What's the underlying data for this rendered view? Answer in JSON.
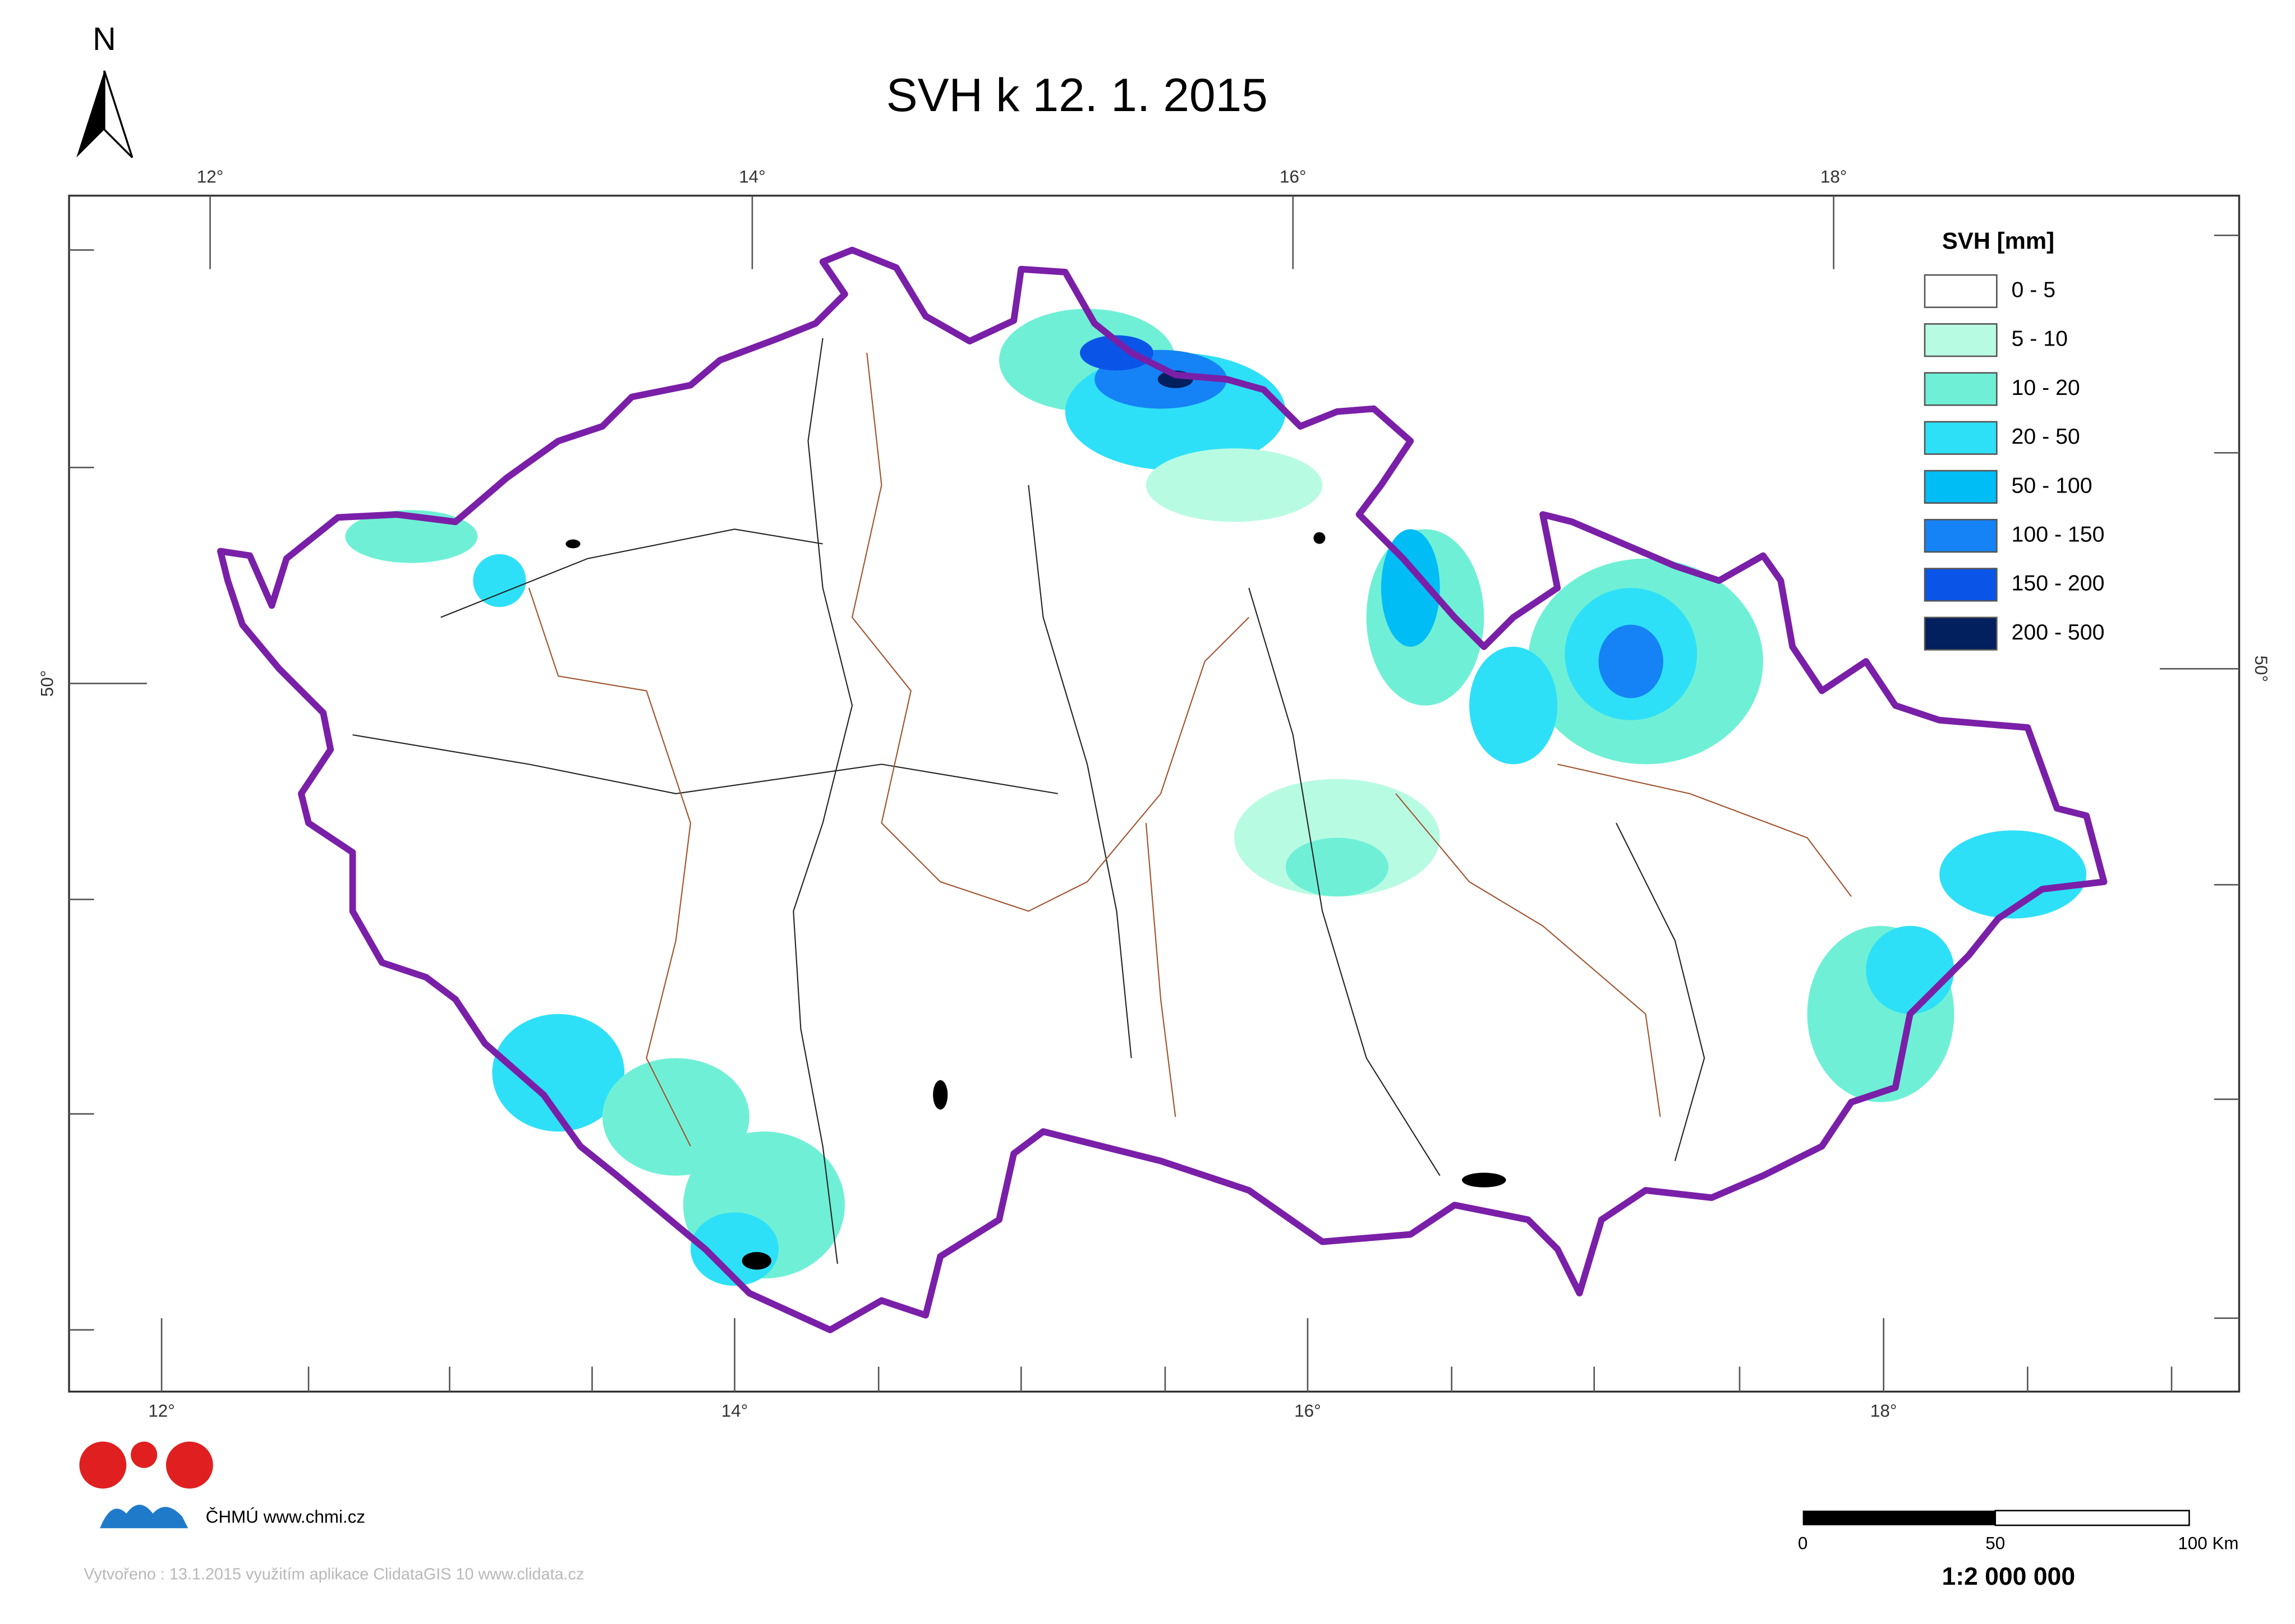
{
  "title": "SVH k 12. 1. 2015",
  "north_arrow": "N",
  "graticule": {
    "top": [
      "12°",
      "14°",
      "16°",
      "18°"
    ],
    "bottom": [
      "12°",
      "14°",
      "16°",
      "18°"
    ],
    "left": "50°",
    "right": "50°"
  },
  "legend": {
    "title": "SVH [mm]",
    "items": [
      {
        "label": "0 - 5",
        "color": "#ffffff"
      },
      {
        "label": "5 - 10",
        "color": "#b8fbe3"
      },
      {
        "label": "10 - 20",
        "color": "#6ff0d6"
      },
      {
        "label": "20 - 50",
        "color": "#2ee0f7"
      },
      {
        "label": "50 - 100",
        "color": "#00bdf5"
      },
      {
        "label": "100 - 150",
        "color": "#1583f5"
      },
      {
        "label": "150 - 200",
        "color": "#0a55e8"
      },
      {
        "label": "200 - 500",
        "color": "#021f5e"
      }
    ]
  },
  "logo_text": "ČHMÚ www.chmi.cz",
  "scale_bar": {
    "labels": [
      "0",
      "50",
      "100 Km"
    ],
    "ratio": "1:2 000 000"
  },
  "footer": "Vytvořeno : 13.1.2015 využitím aplikace ClidataGIS 10 www.clidata.cz"
}
